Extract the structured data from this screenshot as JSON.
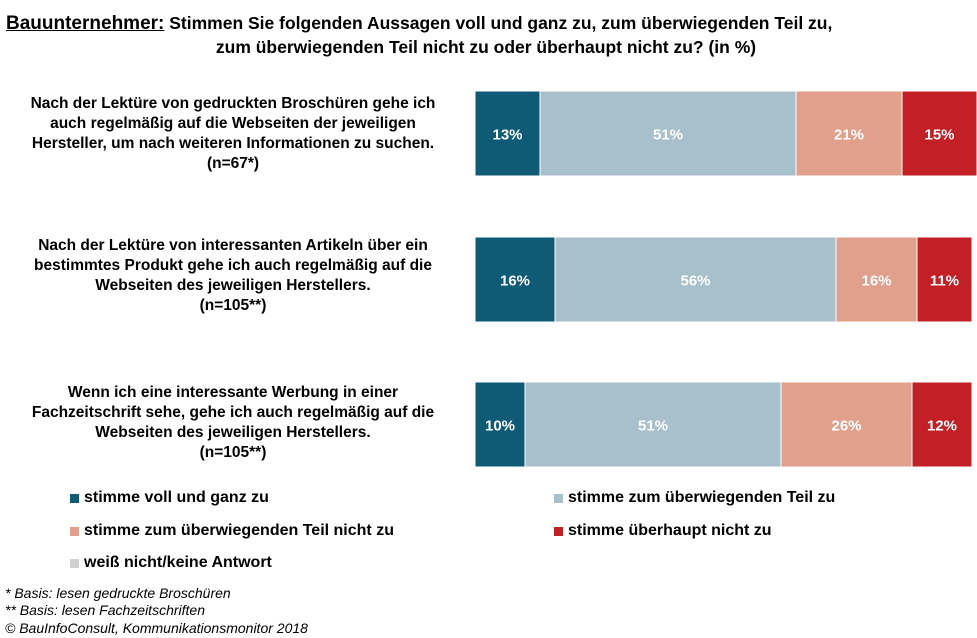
{
  "title": {
    "lead": "Bauunternehmer:",
    "line1": "Stimmen Sie folgenden Aussagen voll und ganz zu, zum überwiegenden Teil zu,",
    "line2": "zum überwiegenden Teil nicht zu oder überhaupt nicht zu? (in %)"
  },
  "chart_data": {
    "type": "bar",
    "orientation": "horizontal-stacked",
    "categories": [
      {
        "lines": [
          "Nach der Lektüre von gedruckten Broschüren gehe ich",
          "auch regelmäßig auf die Webseiten der jeweiligen",
          "Hersteller, um nach weiteren Informationen zu suchen.",
          "(n=67*)"
        ]
      },
      {
        "lines": [
          "Nach der Lektüre von interessanten Artikeln über ein",
          "bestimmtes Produkt gehe ich auch regelmäßig auf die",
          "Webseiten des jeweiligen Herstellers.",
          "(n=105**)"
        ]
      },
      {
        "lines": [
          "Wenn ich eine interessante Werbung in einer",
          "Fachzeitschrift sehe, gehe ich auch regelmäßig auf die",
          "Webseiten des jeweiligen Herstellers.",
          "(n=105**)"
        ]
      }
    ],
    "series": [
      {
        "name": "stimme voll und ganz zu",
        "color": "#0f5b76",
        "values": [
          13,
          16,
          10
        ],
        "labels": [
          "13%",
          "16%",
          "10%"
        ]
      },
      {
        "name": "stimme zum überwiegenden Teil zu",
        "color": "#a8bfcc",
        "values": [
          51,
          56,
          51
        ],
        "labels": [
          "51%",
          "56%",
          "51%"
        ]
      },
      {
        "name": "stimme zum überwiegenden Teil nicht zu",
        "color": "#e0a08c",
        "values": [
          21,
          16,
          26
        ],
        "labels": [
          "21%",
          "16%",
          "26%"
        ]
      },
      {
        "name": "stimme überhaupt nicht zu",
        "color": "#c22025",
        "values": [
          15,
          11,
          12
        ],
        "labels": [
          "15%",
          "11%",
          "12%"
        ]
      },
      {
        "name": "weiß nicht/keine Antwort",
        "color": "#d0d0d0",
        "values": [
          0,
          0,
          0
        ],
        "labels": [
          "",
          "",
          ""
        ]
      }
    ],
    "xlim": [
      0,
      100
    ],
    "legend_position": "bottom"
  },
  "footnotes": [
    "* Basis: lesen gedruckte Broschüren",
    "** Basis: lesen Fachzeitschriften",
    "© BauInfoConsult, Kommunikationsmonitor 2018"
  ]
}
